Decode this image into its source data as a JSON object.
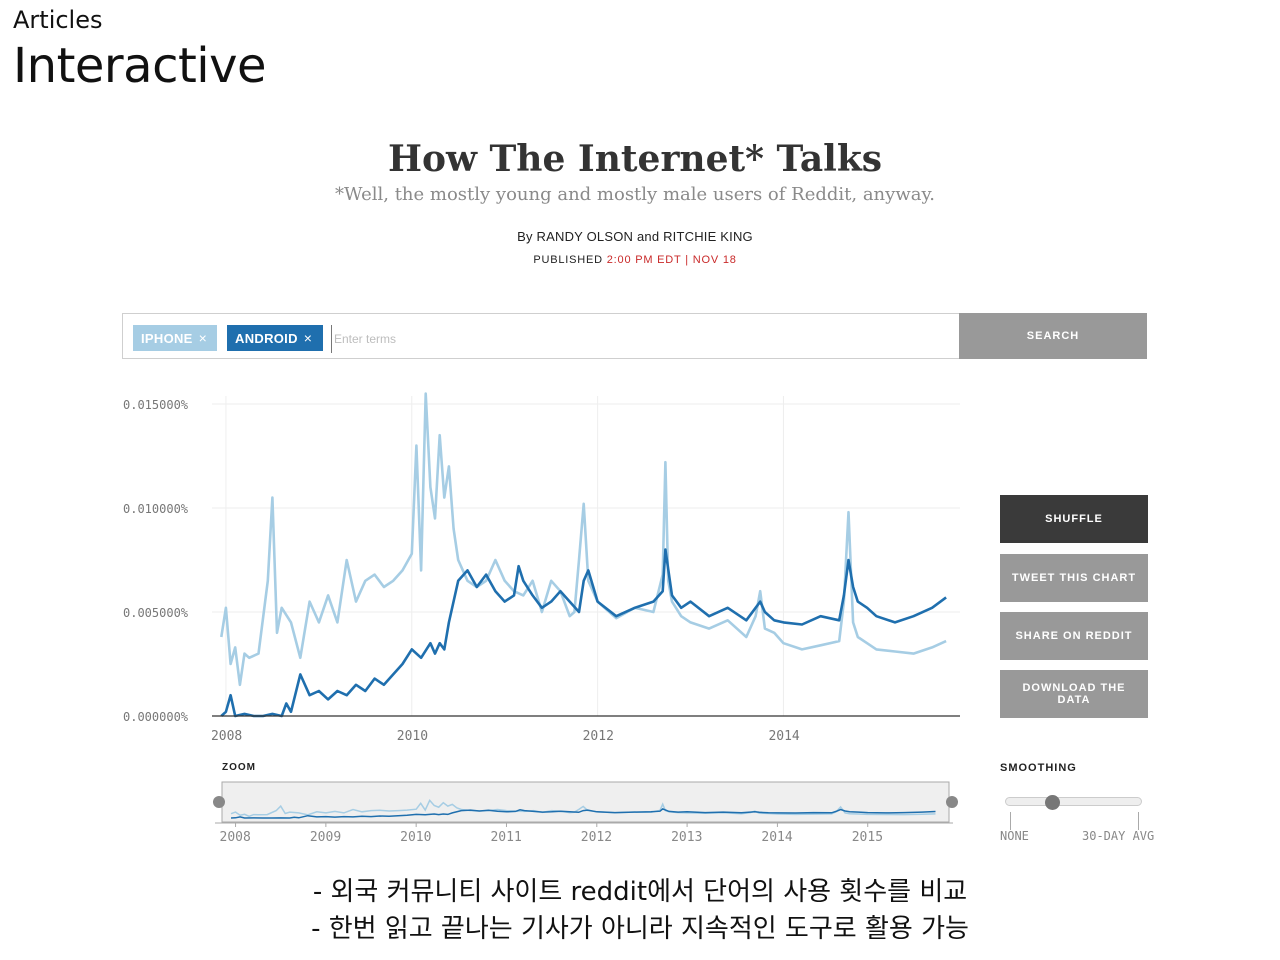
{
  "slide": {
    "section": "Articles",
    "title": "Interactive"
  },
  "article": {
    "title": "How The Internet* Talks",
    "subtitle": "*Well, the mostly young and mostly male users of Reddit, anyway.",
    "byline_prefix": "By",
    "author1": "RANDY OLSON",
    "byline_and": "and",
    "author2": "RITCHIE KING",
    "published_label": "PUBLISHED",
    "published_time": "2:00 PM EDT | NOV 18"
  },
  "search": {
    "tags": [
      {
        "label": "IPHONE",
        "color": "#a6cde4"
      },
      {
        "label": "ANDROID",
        "color": "#1f6fae"
      }
    ],
    "remove_glyph": "×",
    "placeholder": "Enter terms",
    "button_label": "SEARCH"
  },
  "side_buttons": {
    "shuffle": "SHUFFLE",
    "tweet": "TWEET THIS CHART",
    "share": "SHARE ON REDDIT",
    "download": "DOWNLOAD THE DATA"
  },
  "zoom": {
    "label": "ZOOM",
    "years": [
      "2008",
      "2009",
      "2010",
      "2011",
      "2012",
      "2013",
      "2014",
      "2015"
    ]
  },
  "smoothing": {
    "label": "SMOOTHING",
    "min_label": "NONE",
    "max_label": "30-DAY AVG",
    "value_fraction": 0.33
  },
  "chart_data": {
    "type": "line",
    "title": "",
    "xlabel": "",
    "ylabel": "",
    "x_range": [
      2007.85,
      2015.9
    ],
    "ylim": [
      0,
      0.015
    ],
    "y_ticks": [
      0,
      0.005,
      0.01,
      0.015
    ],
    "y_tick_labels": [
      "0.000000%",
      "0.005000%",
      "0.010000%",
      "0.015000%"
    ],
    "x_ticks": [
      2008,
      2010,
      2012,
      2014
    ],
    "x_tick_labels": [
      "2008",
      "2010",
      "2012",
      "2014"
    ],
    "grid": true,
    "legend": "none",
    "series": [
      {
        "name": "IPHONE",
        "color": "#a6cde4",
        "x": [
          2007.95,
          2008.0,
          2008.05,
          2008.1,
          2008.15,
          2008.2,
          2008.25,
          2008.35,
          2008.45,
          2008.5,
          2008.55,
          2008.6,
          2008.7,
          2008.8,
          2008.9,
          2009.0,
          2009.1,
          2009.2,
          2009.3,
          2009.4,
          2009.5,
          2009.6,
          2009.7,
          2009.8,
          2009.9,
          2010.0,
          2010.05,
          2010.1,
          2010.15,
          2010.2,
          2010.25,
          2010.3,
          2010.35,
          2010.4,
          2010.45,
          2010.5,
          2010.6,
          2010.7,
          2010.8,
          2010.9,
          2011.0,
          2011.1,
          2011.2,
          2011.3,
          2011.4,
          2011.5,
          2011.6,
          2011.7,
          2011.75,
          2011.8,
          2011.85,
          2011.9,
          2012.0,
          2012.2,
          2012.4,
          2012.6,
          2012.7,
          2012.73,
          2012.76,
          2012.8,
          2012.9,
          2013.0,
          2013.2,
          2013.4,
          2013.6,
          2013.7,
          2013.75,
          2013.8,
          2013.9,
          2014.0,
          2014.2,
          2014.4,
          2014.6,
          2014.65,
          2014.7,
          2014.75,
          2014.8,
          2014.9,
          2015.0,
          2015.2,
          2015.4,
          2015.6,
          2015.75
        ],
        "values": [
          0.0038,
          0.0052,
          0.0025,
          0.0033,
          0.0015,
          0.003,
          0.0028,
          0.003,
          0.0065,
          0.0105,
          0.004,
          0.0052,
          0.0045,
          0.0028,
          0.0055,
          0.0045,
          0.0058,
          0.0045,
          0.0075,
          0.0055,
          0.0065,
          0.0068,
          0.0062,
          0.0065,
          0.007,
          0.0078,
          0.013,
          0.007,
          0.0155,
          0.011,
          0.0095,
          0.0135,
          0.0105,
          0.012,
          0.009,
          0.0075,
          0.0065,
          0.0062,
          0.0065,
          0.0075,
          0.0065,
          0.006,
          0.0058,
          0.0065,
          0.005,
          0.0065,
          0.006,
          0.0048,
          0.005,
          0.0075,
          0.0102,
          0.0065,
          0.0055,
          0.0047,
          0.0052,
          0.005,
          0.0068,
          0.0122,
          0.0065,
          0.0055,
          0.0048,
          0.0045,
          0.0042,
          0.0046,
          0.0038,
          0.0048,
          0.006,
          0.0042,
          0.004,
          0.0035,
          0.0032,
          0.0034,
          0.0036,
          0.0055,
          0.0098,
          0.0045,
          0.0038,
          0.0035,
          0.0032,
          0.0031,
          0.003,
          0.0033,
          0.0036
        ]
      },
      {
        "name": "ANDROID",
        "color": "#1f6fae",
        "x": [
          2007.95,
          2008.0,
          2008.05,
          2008.1,
          2008.2,
          2008.3,
          2008.4,
          2008.5,
          2008.6,
          2008.65,
          2008.7,
          2008.8,
          2008.9,
          2009.0,
          2009.1,
          2009.2,
          2009.3,
          2009.4,
          2009.5,
          2009.6,
          2009.7,
          2009.8,
          2009.9,
          2010.0,
          2010.1,
          2010.2,
          2010.25,
          2010.3,
          2010.35,
          2010.4,
          2010.5,
          2010.6,
          2010.7,
          2010.8,
          2010.9,
          2011.0,
          2011.1,
          2011.15,
          2011.2,
          2011.3,
          2011.4,
          2011.5,
          2011.6,
          2011.7,
          2011.8,
          2011.85,
          2011.9,
          2012.0,
          2012.2,
          2012.4,
          2012.6,
          2012.7,
          2012.73,
          2012.8,
          2012.9,
          2013.0,
          2013.2,
          2013.4,
          2013.6,
          2013.7,
          2013.75,
          2013.8,
          2013.9,
          2014.0,
          2014.2,
          2014.4,
          2014.6,
          2014.65,
          2014.7,
          2014.75,
          2014.8,
          2014.9,
          2015.0,
          2015.2,
          2015.4,
          2015.6,
          2015.75
        ],
        "values": [
          0.0,
          0.0002,
          0.001,
          0.0,
          0.0001,
          0.0,
          0.0,
          0.0001,
          0.0,
          0.0006,
          0.0002,
          0.002,
          0.001,
          0.0012,
          0.0008,
          0.0012,
          0.001,
          0.0015,
          0.0012,
          0.0018,
          0.0015,
          0.002,
          0.0025,
          0.0032,
          0.0028,
          0.0035,
          0.003,
          0.0035,
          0.0032,
          0.0045,
          0.0065,
          0.007,
          0.0062,
          0.0068,
          0.006,
          0.0055,
          0.0058,
          0.0072,
          0.0065,
          0.0058,
          0.0052,
          0.0055,
          0.006,
          0.0055,
          0.005,
          0.0065,
          0.007,
          0.0055,
          0.0048,
          0.0052,
          0.0055,
          0.006,
          0.008,
          0.0058,
          0.0052,
          0.0055,
          0.0048,
          0.0052,
          0.0046,
          0.0052,
          0.0055,
          0.005,
          0.0046,
          0.0045,
          0.0044,
          0.0048,
          0.0046,
          0.0058,
          0.0075,
          0.0062,
          0.0055,
          0.0052,
          0.0048,
          0.0045,
          0.0048,
          0.0052,
          0.0057
        ]
      }
    ]
  }
}
